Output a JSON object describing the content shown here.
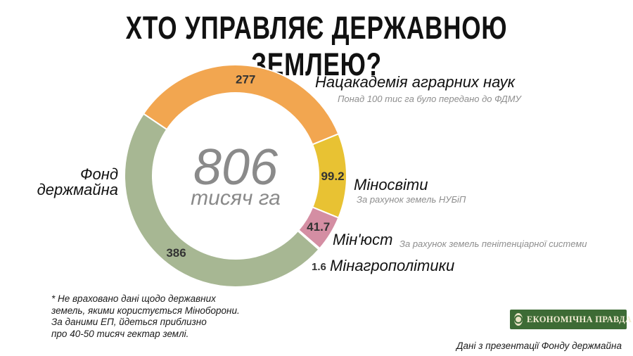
{
  "title": "ХТО УПРАВЛЯЄ ДЕРЖАВНОЮ ЗЕМЛЕЮ?",
  "center": {
    "value": "806",
    "unit": "тисяч га"
  },
  "chart_data": {
    "type": "pie",
    "title": "ХТО УПРАВЛЯЄ ДЕРЖАВНОЮ ЗЕМЛЕЮ?",
    "total": 806,
    "unit": "тисяч га",
    "slices": [
      {
        "name": "Нацакадемія аграрних наук",
        "note": "Понад 100 тис га було передано до ФДМУ",
        "value": 277,
        "label": "277",
        "color": "#f2a650"
      },
      {
        "name": "Міносвіти",
        "note": "За рахунок земель НУБіП",
        "value": 99.2,
        "label": "99.2",
        "color": "#e8c233"
      },
      {
        "name": "Мін'юст",
        "note": "За рахунок земель пенітенціарної системи",
        "value": 41.7,
        "label": "41.7",
        "color": "#d48ea3"
      },
      {
        "name": "Мінагрополітики",
        "note": "",
        "value": 1.6,
        "label": "1.6",
        "color": "#7f7f7f"
      },
      {
        "name": "Фонд держмайна",
        "note": "",
        "value": 386,
        "label": "386",
        "color": "#a7b793"
      }
    ]
  },
  "labels": {
    "nan": {
      "name": "Нацакадемія аграрних наук",
      "note": "Понад 100 тис га було передано до ФДМУ"
    },
    "mon": {
      "name": "Міносвіти",
      "note": "За рахунок земель НУБіП"
    },
    "minjust": {
      "name": "Мін'юст",
      "note": "За рахунок земель пенітенціарної системи"
    },
    "minagro": {
      "name": "Мінагрополітики",
      "value": "1.6"
    },
    "fond": {
      "line1": "Фонд",
      "line2": "держмайна"
    }
  },
  "note_lines": [
    "* Не враховано дані щодо державних",
    "земель, якими користується Міноборони.",
    "За даними ЕП, йдеться приблизно",
    "про 40-50 тисяч гектар землі."
  ],
  "source": "Дані з презентації Фонду держмайна",
  "logo": {
    "text": "ЕКОНОМІЧНА ПРАВДА"
  }
}
